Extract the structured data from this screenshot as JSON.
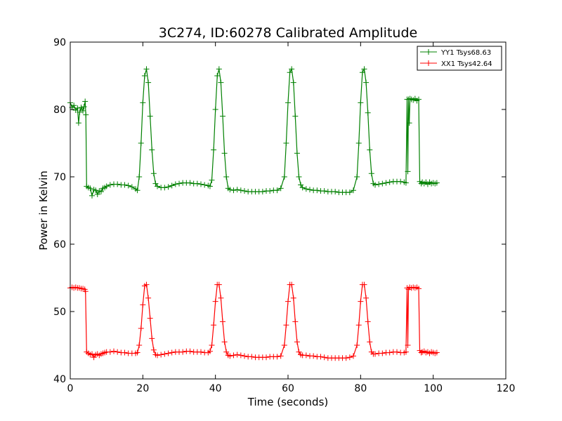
{
  "chart_data": {
    "type": "line",
    "title": "3C274, ID:60278 Calibrated Amplitude",
    "xlabel": "Time (seconds)",
    "ylabel": "Power in Kelvin",
    "xlim": [
      0,
      120
    ],
    "ylim": [
      40,
      90
    ],
    "xticks": [
      0,
      20,
      40,
      60,
      80,
      100,
      120
    ],
    "yticks": [
      40,
      50,
      60,
      70,
      80,
      90
    ],
    "legend_position": "top-right",
    "marker": "plus",
    "series": [
      {
        "name": "YY1 Tsys68.63",
        "color": "#008000",
        "points": [
          [
            0.0,
            81.0
          ],
          [
            0.5,
            80.3
          ],
          [
            1.0,
            80.6
          ],
          [
            1.5,
            79.9
          ],
          [
            2.0,
            80.2
          ],
          [
            2.3,
            78.0
          ],
          [
            2.6,
            79.6
          ],
          [
            3.0,
            80.3
          ],
          [
            3.5,
            79.8
          ],
          [
            3.8,
            80.4
          ],
          [
            4.1,
            81.2
          ],
          [
            4.3,
            79.2
          ],
          [
            4.5,
            68.6
          ],
          [
            5.0,
            68.4
          ],
          [
            5.5,
            68.3
          ],
          [
            6.0,
            67.2
          ],
          [
            6.5,
            68.1
          ],
          [
            7.0,
            68.0
          ],
          [
            7.5,
            67.4
          ],
          [
            8.0,
            67.9
          ],
          [
            8.5,
            67.8
          ],
          [
            9.0,
            68.3
          ],
          [
            9.5,
            68.4
          ],
          [
            10.0,
            68.6
          ],
          [
            11,
            68.8
          ],
          [
            12,
            68.9
          ],
          [
            13,
            68.9
          ],
          [
            14,
            68.8
          ],
          [
            15,
            68.8
          ],
          [
            16,
            68.7
          ],
          [
            17,
            68.5
          ],
          [
            18,
            68.2
          ],
          [
            18.5,
            68.0
          ],
          [
            19,
            70.0
          ],
          [
            19.5,
            75.0
          ],
          [
            20,
            81.0
          ],
          [
            20.5,
            85.0
          ],
          [
            21,
            86.0
          ],
          [
            21.5,
            84.0
          ],
          [
            22,
            79.0
          ],
          [
            22.5,
            74.0
          ],
          [
            23,
            70.5
          ],
          [
            23.5,
            69.0
          ],
          [
            24,
            68.6
          ],
          [
            25,
            68.4
          ],
          [
            26,
            68.4
          ],
          [
            27,
            68.5
          ],
          [
            28,
            68.7
          ],
          [
            29,
            68.9
          ],
          [
            30,
            69.0
          ],
          [
            31,
            69.1
          ],
          [
            32,
            69.1
          ],
          [
            33,
            69.1
          ],
          [
            34,
            69.0
          ],
          [
            35,
            69.0
          ],
          [
            36,
            68.9
          ],
          [
            37,
            68.8
          ],
          [
            38,
            68.7
          ],
          [
            38.5,
            68.6
          ],
          [
            39,
            69.5
          ],
          [
            39.5,
            74.0
          ],
          [
            40,
            80.0
          ],
          [
            40.5,
            85.0
          ],
          [
            41,
            86.0
          ],
          [
            41.5,
            84.0
          ],
          [
            42,
            79.0
          ],
          [
            42.5,
            73.5
          ],
          [
            43,
            70.0
          ],
          [
            43.5,
            68.3
          ],
          [
            44,
            68.1
          ],
          [
            45,
            68.0
          ],
          [
            46,
            68.1
          ],
          [
            47,
            68.0
          ],
          [
            48,
            67.9
          ],
          [
            49,
            67.8
          ],
          [
            50,
            67.8
          ],
          [
            51,
            67.8
          ],
          [
            52,
            67.8
          ],
          [
            53,
            67.8
          ],
          [
            54,
            67.9
          ],
          [
            55,
            67.9
          ],
          [
            56,
            68.0
          ],
          [
            57,
            68.0
          ],
          [
            58,
            68.3
          ],
          [
            59,
            70.0
          ],
          [
            59.5,
            75.0
          ],
          [
            60,
            81.0
          ],
          [
            60.5,
            85.5
          ],
          [
            61,
            86.0
          ],
          [
            61.5,
            84.0
          ],
          [
            62,
            79.0
          ],
          [
            62.5,
            73.5
          ],
          [
            63,
            70.0
          ],
          [
            63.5,
            68.8
          ],
          [
            64,
            68.4
          ],
          [
            65,
            68.2
          ],
          [
            66,
            68.1
          ],
          [
            67,
            68.0
          ],
          [
            68,
            68.0
          ],
          [
            69,
            67.9
          ],
          [
            70,
            67.9
          ],
          [
            71,
            67.8
          ],
          [
            72,
            67.8
          ],
          [
            73,
            67.8
          ],
          [
            74,
            67.7
          ],
          [
            75,
            67.7
          ],
          [
            76,
            67.7
          ],
          [
            77,
            67.7
          ],
          [
            78,
            68.0
          ],
          [
            79,
            70.0
          ],
          [
            79.5,
            75.0
          ],
          [
            80,
            81.0
          ],
          [
            80.5,
            85.5
          ],
          [
            81,
            86.0
          ],
          [
            81.5,
            84.0
          ],
          [
            82,
            79.5
          ],
          [
            82.5,
            74.0
          ],
          [
            83,
            70.5
          ],
          [
            83.5,
            69.0
          ],
          [
            84,
            68.8
          ],
          [
            85,
            68.9
          ],
          [
            86,
            69.0
          ],
          [
            87,
            69.1
          ],
          [
            88,
            69.2
          ],
          [
            89,
            69.3
          ],
          [
            90,
            69.3
          ],
          [
            91,
            69.3
          ],
          [
            92,
            69.2
          ],
          [
            92.5,
            69.1
          ],
          [
            92.8,
            81.5
          ],
          [
            93.0,
            70.8
          ],
          [
            93.2,
            81.5
          ],
          [
            93.4,
            78.0
          ],
          [
            93.6,
            81.6
          ],
          [
            94,
            81.5
          ],
          [
            94.5,
            81.4
          ],
          [
            95,
            81.6
          ],
          [
            95.5,
            81.3
          ],
          [
            96,
            81.5
          ],
          [
            96.3,
            69.3
          ],
          [
            96.7,
            69.0
          ],
          [
            97,
            69.2
          ],
          [
            97.5,
            69.0
          ],
          [
            98,
            69.2
          ],
          [
            98.5,
            68.9
          ],
          [
            99,
            69.2
          ],
          [
            99.5,
            69.0
          ],
          [
            100,
            69.1
          ],
          [
            100.5,
            69.0
          ],
          [
            101,
            69.1
          ]
        ]
      },
      {
        "name": "XX1 Tsys42.64",
        "color": "#ff0000",
        "points": [
          [
            0.0,
            53.5
          ],
          [
            0.5,
            53.6
          ],
          [
            1.0,
            53.5
          ],
          [
            1.5,
            53.6
          ],
          [
            2.0,
            53.5
          ],
          [
            2.5,
            53.5
          ],
          [
            3.0,
            53.4
          ],
          [
            3.5,
            53.4
          ],
          [
            4.0,
            53.3
          ],
          [
            4.2,
            53.0
          ],
          [
            4.5,
            44.0
          ],
          [
            5.0,
            43.8
          ],
          [
            5.5,
            43.6
          ],
          [
            6.0,
            43.7
          ],
          [
            6.5,
            43.2
          ],
          [
            7.0,
            43.6
          ],
          [
            7.5,
            43.7
          ],
          [
            8.0,
            43.5
          ],
          [
            8.5,
            43.7
          ],
          [
            9.0,
            43.8
          ],
          [
            9.5,
            43.9
          ],
          [
            10,
            44.0
          ],
          [
            11,
            44.0
          ],
          [
            12,
            44.1
          ],
          [
            13,
            44.0
          ],
          [
            14,
            43.9
          ],
          [
            15,
            43.9
          ],
          [
            16,
            43.8
          ],
          [
            17,
            43.8
          ],
          [
            18,
            43.8
          ],
          [
            18.5,
            43.9
          ],
          [
            19,
            45.0
          ],
          [
            19.5,
            47.5
          ],
          [
            20,
            51.0
          ],
          [
            20.5,
            53.8
          ],
          [
            21,
            54.0
          ],
          [
            21.5,
            52.0
          ],
          [
            22,
            49.0
          ],
          [
            22.5,
            46.0
          ],
          [
            23,
            44.3
          ],
          [
            23.5,
            43.6
          ],
          [
            24,
            43.5
          ],
          [
            25,
            43.6
          ],
          [
            26,
            43.7
          ],
          [
            27,
            43.8
          ],
          [
            28,
            43.9
          ],
          [
            29,
            44.0
          ],
          [
            30,
            44.0
          ],
          [
            31,
            44.0
          ],
          [
            32,
            44.1
          ],
          [
            33,
            44.1
          ],
          [
            34,
            44.0
          ],
          [
            35,
            44.0
          ],
          [
            36,
            44.0
          ],
          [
            37,
            43.9
          ],
          [
            38,
            43.9
          ],
          [
            38.5,
            44.1
          ],
          [
            39,
            45.0
          ],
          [
            39.5,
            48.0
          ],
          [
            40,
            51.5
          ],
          [
            40.5,
            54.0
          ],
          [
            41,
            54.0
          ],
          [
            41.5,
            52.0
          ],
          [
            42,
            48.5
          ],
          [
            42.5,
            45.5
          ],
          [
            43,
            44.0
          ],
          [
            43.5,
            43.5
          ],
          [
            44,
            43.4
          ],
          [
            45,
            43.5
          ],
          [
            46,
            43.6
          ],
          [
            47,
            43.5
          ],
          [
            48,
            43.4
          ],
          [
            49,
            43.3
          ],
          [
            50,
            43.3
          ],
          [
            51,
            43.2
          ],
          [
            52,
            43.2
          ],
          [
            53,
            43.2
          ],
          [
            54,
            43.2
          ],
          [
            55,
            43.3
          ],
          [
            56,
            43.3
          ],
          [
            57,
            43.3
          ],
          [
            58,
            43.4
          ],
          [
            59,
            45.0
          ],
          [
            59.5,
            48.0
          ],
          [
            60,
            51.5
          ],
          [
            60.5,
            54.0
          ],
          [
            61,
            54.0
          ],
          [
            61.5,
            52.0
          ],
          [
            62,
            48.5
          ],
          [
            62.5,
            45.5
          ],
          [
            63,
            44.0
          ],
          [
            63.5,
            43.6
          ],
          [
            64,
            43.5
          ],
          [
            65,
            43.5
          ],
          [
            66,
            43.4
          ],
          [
            67,
            43.4
          ],
          [
            68,
            43.3
          ],
          [
            69,
            43.3
          ],
          [
            70,
            43.2
          ],
          [
            71,
            43.1
          ],
          [
            72,
            43.1
          ],
          [
            73,
            43.1
          ],
          [
            74,
            43.1
          ],
          [
            75,
            43.1
          ],
          [
            76,
            43.1
          ],
          [
            77,
            43.2
          ],
          [
            78,
            43.4
          ],
          [
            79,
            45.0
          ],
          [
            79.5,
            48.0
          ],
          [
            80,
            51.5
          ],
          [
            80.5,
            54.0
          ],
          [
            81,
            54.0
          ],
          [
            81.5,
            52.0
          ],
          [
            82,
            48.5
          ],
          [
            82.5,
            45.5
          ],
          [
            83,
            44.0
          ],
          [
            83.5,
            43.7
          ],
          [
            84,
            43.7
          ],
          [
            85,
            43.8
          ],
          [
            86,
            43.8
          ],
          [
            87,
            43.9
          ],
          [
            88,
            43.9
          ],
          [
            89,
            44.0
          ],
          [
            90,
            44.0
          ],
          [
            91,
            43.9
          ],
          [
            92,
            43.9
          ],
          [
            92.5,
            44.0
          ],
          [
            92.8,
            53.5
          ],
          [
            93.0,
            45.0
          ],
          [
            93.2,
            53.3
          ],
          [
            93.5,
            53.6
          ],
          [
            94,
            53.5
          ],
          [
            94.5,
            53.6
          ],
          [
            95,
            53.5
          ],
          [
            95.5,
            53.6
          ],
          [
            96,
            53.4
          ],
          [
            96.3,
            44.2
          ],
          [
            96.7,
            43.9
          ],
          [
            97,
            44.0
          ],
          [
            97.5,
            44.1
          ],
          [
            98,
            43.9
          ],
          [
            98.5,
            44.0
          ],
          [
            99,
            43.8
          ],
          [
            99.5,
            44.0
          ],
          [
            100,
            43.9
          ],
          [
            100.5,
            43.8
          ],
          [
            101,
            43.9
          ]
        ]
      }
    ]
  }
}
